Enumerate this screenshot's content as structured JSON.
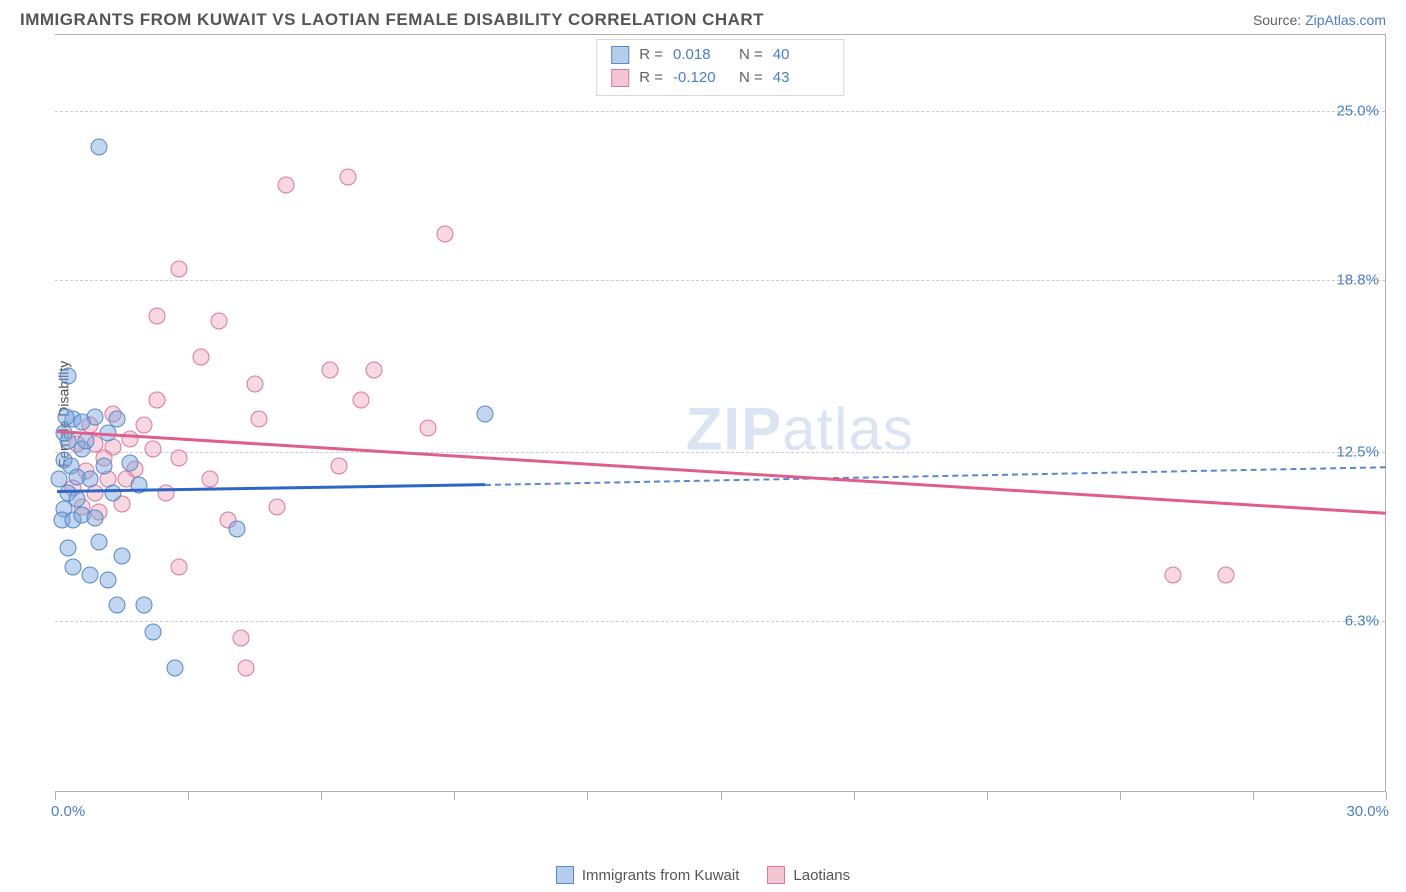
{
  "title": "IMMIGRANTS FROM KUWAIT VS LAOTIAN FEMALE DISABILITY CORRELATION CHART",
  "source_prefix": "Source: ",
  "source_link": "ZipAtlas.com",
  "y_axis_label": "Female Disability",
  "x_min_label": "0.0%",
  "x_max_label": "30.0%",
  "xlim": [
    0,
    30
  ],
  "ylim": [
    0,
    27.8
  ],
  "y_ticks": [
    {
      "v": 6.3,
      "label": "6.3%"
    },
    {
      "v": 12.5,
      "label": "12.5%"
    },
    {
      "v": 18.8,
      "label": "18.8%"
    },
    {
      "v": 25.0,
      "label": "25.0%"
    }
  ],
  "x_tick_values": [
    0,
    3,
    6,
    9,
    12,
    15,
    18,
    21,
    24,
    27,
    30
  ],
  "colors": {
    "blue_fill": "rgba(120,165,220,0.45)",
    "blue_stroke": "#5a88c8",
    "pink_fill": "rgba(235,150,175,0.38)",
    "pink_stroke": "#d87a9a",
    "trend_blue": "#2f66c4",
    "trend_pink": "#e05e8b",
    "grid": "#cccccc",
    "axis": "#b0b0b0",
    "link": "#4a7dc4"
  },
  "legend_stats": [
    {
      "swatch": "blue",
      "r_label": "R =",
      "r": "0.018",
      "n_label": "N =",
      "n": "40"
    },
    {
      "swatch": "pink",
      "r_label": "R =",
      "r": "-0.120",
      "n_label": "N =",
      "n": "43"
    }
  ],
  "bottom_legend": [
    {
      "swatch": "blue",
      "label": "Immigrants from Kuwait"
    },
    {
      "swatch": "pink",
      "label": "Laotians"
    }
  ],
  "watermark_bold": "ZIP",
  "watermark_rest": "atlas",
  "trend_lines": {
    "blue_solid": {
      "x1": 0.05,
      "y1": 11.1,
      "x2": 9.7,
      "y2": 11.35,
      "color": "#2f66c4"
    },
    "blue_dash": {
      "x1": 9.7,
      "y1": 11.35,
      "x2": 30,
      "y2": 12.0,
      "color": "#5a88c8"
    },
    "pink_solid": {
      "x1": 0.05,
      "y1": 13.3,
      "x2": 30,
      "y2": 10.3,
      "color": "#e05e8b"
    }
  },
  "points_blue": [
    {
      "x": 1.0,
      "y": 23.7
    },
    {
      "x": 0.3,
      "y": 15.3
    },
    {
      "x": 0.4,
      "y": 13.7
    },
    {
      "x": 0.3,
      "y": 12.9
    },
    {
      "x": 0.2,
      "y": 12.2
    },
    {
      "x": 0.1,
      "y": 11.5
    },
    {
      "x": 0.3,
      "y": 11.0
    },
    {
      "x": 0.2,
      "y": 10.4
    },
    {
      "x": 0.15,
      "y": 10.0
    },
    {
      "x": 0.9,
      "y": 13.8
    },
    {
      "x": 1.4,
      "y": 13.7
    },
    {
      "x": 0.6,
      "y": 12.6
    },
    {
      "x": 0.8,
      "y": 11.5
    },
    {
      "x": 1.7,
      "y": 12.1
    },
    {
      "x": 0.5,
      "y": 10.8
    },
    {
      "x": 0.4,
      "y": 8.3
    },
    {
      "x": 1.0,
      "y": 9.2
    },
    {
      "x": 1.5,
      "y": 8.7
    },
    {
      "x": 1.2,
      "y": 7.8
    },
    {
      "x": 1.4,
      "y": 6.9
    },
    {
      "x": 2.0,
      "y": 6.9
    },
    {
      "x": 2.2,
      "y": 5.9
    },
    {
      "x": 2.7,
      "y": 4.6
    },
    {
      "x": 4.1,
      "y": 9.7
    },
    {
      "x": 9.7,
      "y": 13.9
    },
    {
      "x": 0.2,
      "y": 13.2
    },
    {
      "x": 0.35,
      "y": 12.0
    },
    {
      "x": 0.5,
      "y": 11.6
    },
    {
      "x": 0.7,
      "y": 12.9
    },
    {
      "x": 0.4,
      "y": 10.0
    },
    {
      "x": 0.6,
      "y": 10.2
    },
    {
      "x": 0.9,
      "y": 10.1
    },
    {
      "x": 0.3,
      "y": 9.0
    },
    {
      "x": 1.1,
      "y": 12.0
    },
    {
      "x": 1.3,
      "y": 11.0
    },
    {
      "x": 1.9,
      "y": 11.3
    },
    {
      "x": 0.25,
      "y": 13.8
    },
    {
      "x": 0.6,
      "y": 13.6
    },
    {
      "x": 0.8,
      "y": 8.0
    },
    {
      "x": 1.2,
      "y": 13.2
    }
  ],
  "points_pink": [
    {
      "x": 5.2,
      "y": 22.3
    },
    {
      "x": 6.6,
      "y": 22.6
    },
    {
      "x": 8.8,
      "y": 20.5
    },
    {
      "x": 2.8,
      "y": 19.2
    },
    {
      "x": 2.3,
      "y": 17.5
    },
    {
      "x": 3.7,
      "y": 17.3
    },
    {
      "x": 3.3,
      "y": 16.0
    },
    {
      "x": 1.3,
      "y": 13.9
    },
    {
      "x": 2.3,
      "y": 14.4
    },
    {
      "x": 4.5,
      "y": 15.0
    },
    {
      "x": 6.2,
      "y": 15.5
    },
    {
      "x": 7.2,
      "y": 15.5
    },
    {
      "x": 6.9,
      "y": 14.4
    },
    {
      "x": 8.4,
      "y": 13.4
    },
    {
      "x": 4.6,
      "y": 13.7
    },
    {
      "x": 6.4,
      "y": 12.0
    },
    {
      "x": 3.5,
      "y": 11.5
    },
    {
      "x": 1.6,
      "y": 11.5
    },
    {
      "x": 2.8,
      "y": 12.3
    },
    {
      "x": 5.0,
      "y": 10.5
    },
    {
      "x": 3.9,
      "y": 10.0
    },
    {
      "x": 2.8,
      "y": 8.3
    },
    {
      "x": 4.2,
      "y": 5.7
    },
    {
      "x": 4.3,
      "y": 4.6
    },
    {
      "x": 25.2,
      "y": 8.0
    },
    {
      "x": 26.4,
      "y": 8.0
    },
    {
      "x": 0.7,
      "y": 11.8
    },
    {
      "x": 0.9,
      "y": 12.8
    },
    {
      "x": 1.2,
      "y": 11.5
    },
    {
      "x": 0.5,
      "y": 12.8
    },
    {
      "x": 0.8,
      "y": 13.5
    },
    {
      "x": 0.9,
      "y": 11.0
    },
    {
      "x": 1.0,
      "y": 10.3
    },
    {
      "x": 1.5,
      "y": 10.6
    },
    {
      "x": 1.7,
      "y": 13.0
    },
    {
      "x": 2.5,
      "y": 11.0
    },
    {
      "x": 2.2,
      "y": 12.6
    },
    {
      "x": 0.4,
      "y": 11.2
    },
    {
      "x": 0.6,
      "y": 10.5
    },
    {
      "x": 1.1,
      "y": 12.3
    },
    {
      "x": 1.3,
      "y": 12.7
    },
    {
      "x": 1.8,
      "y": 11.9
    },
    {
      "x": 2.0,
      "y": 13.5
    }
  ]
}
